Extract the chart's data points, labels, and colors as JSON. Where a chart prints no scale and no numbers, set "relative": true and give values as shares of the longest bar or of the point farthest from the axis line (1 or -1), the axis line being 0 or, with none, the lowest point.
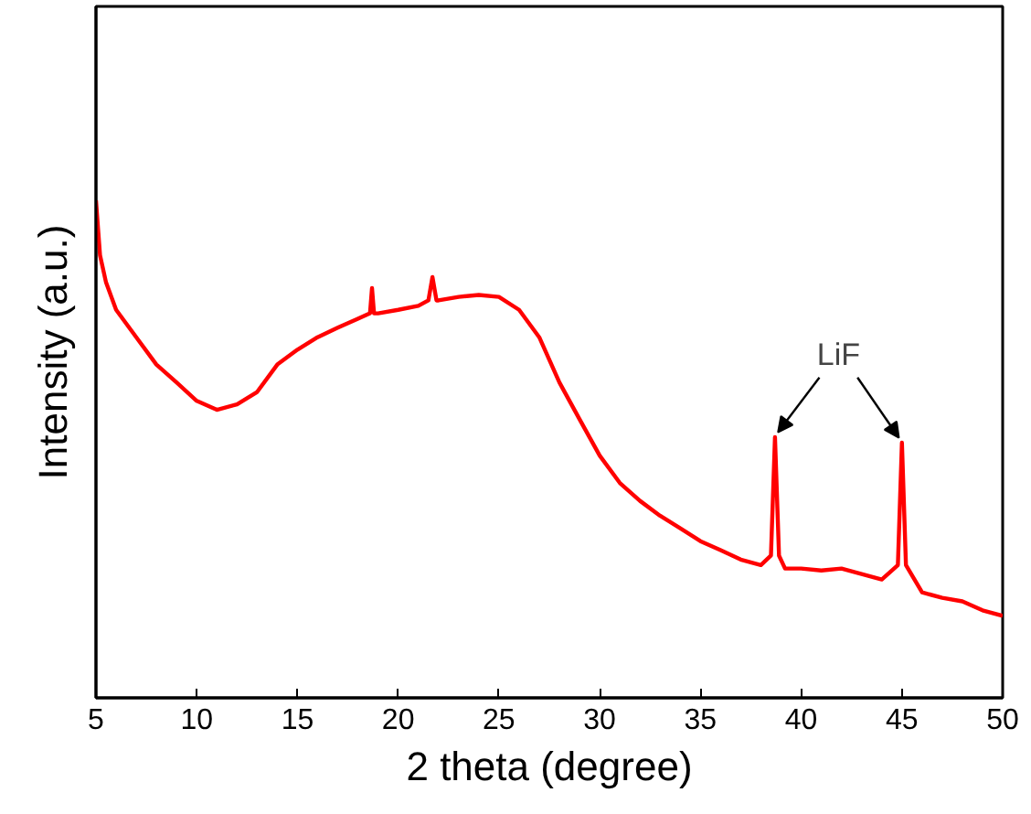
{
  "chart_data": {
    "type": "line",
    "relative": true,
    "xlabel": "2 theta (degree)",
    "ylabel": "Intensity (a.u.)",
    "xlim": [
      5,
      50
    ],
    "xticks": [
      5,
      10,
      15,
      20,
      25,
      30,
      35,
      40,
      45,
      50
    ],
    "grid": false,
    "marker": "none",
    "line_style": "solid",
    "annotations": [
      "LiF"
    ],
    "x": [
      5.0,
      5.2,
      5.5,
      6,
      7,
      8,
      9,
      10,
      11,
      12,
      13,
      14,
      15,
      16,
      17,
      18,
      18.6,
      18.7,
      18.8,
      19,
      20,
      21,
      21.5,
      21.7,
      21.9,
      22,
      23,
      24,
      25,
      26,
      27,
      28,
      29,
      30,
      31,
      32,
      33,
      34,
      35,
      36,
      37,
      38,
      38.5,
      38.7,
      38.9,
      39.2,
      40,
      41,
      42,
      43,
      44,
      44.8,
      45,
      45.2,
      46,
      47,
      48,
      49,
      50
    ],
    "series": [
      {
        "color": "#ff0000",
        "values": [
          1.0,
          0.89,
          0.835,
          0.78,
          0.725,
          0.67,
          0.634,
          0.597,
          0.579,
          0.59,
          0.615,
          0.67,
          0.7,
          0.725,
          0.744,
          0.762,
          0.773,
          0.824,
          0.773,
          0.773,
          0.78,
          0.788,
          0.799,
          0.846,
          0.799,
          0.799,
          0.806,
          0.81,
          0.806,
          0.78,
          0.725,
          0.634,
          0.56,
          0.487,
          0.432,
          0.396,
          0.366,
          0.341,
          0.315,
          0.297,
          0.278,
          0.267,
          0.286,
          0.524,
          0.286,
          0.26,
          0.26,
          0.256,
          0.26,
          0.249,
          0.238,
          0.267,
          0.513,
          0.267,
          0.212,
          0.201,
          0.194,
          0.176,
          0.165
        ]
      }
    ]
  }
}
